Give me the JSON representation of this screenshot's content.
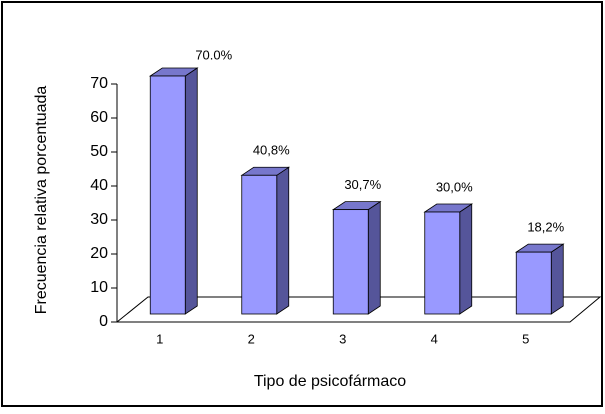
{
  "chart_data": {
    "type": "bar3d",
    "x_label": "Tipo de psicofármaco",
    "y_label": "Frecuencia relativa porcentuada",
    "categories": [
      "1",
      "2",
      "3",
      "4",
      "5"
    ],
    "values": [
      70.0,
      40.8,
      30.7,
      30.0,
      18.2
    ],
    "value_labels": [
      "70.0%",
      "40,8%",
      "30,7%",
      "30,0%",
      "18,2%"
    ],
    "color": "#9999ff",
    "ylim": [
      0,
      70
    ],
    "yticks": [
      0,
      10,
      20,
      30,
      40,
      50,
      60,
      70
    ]
  }
}
